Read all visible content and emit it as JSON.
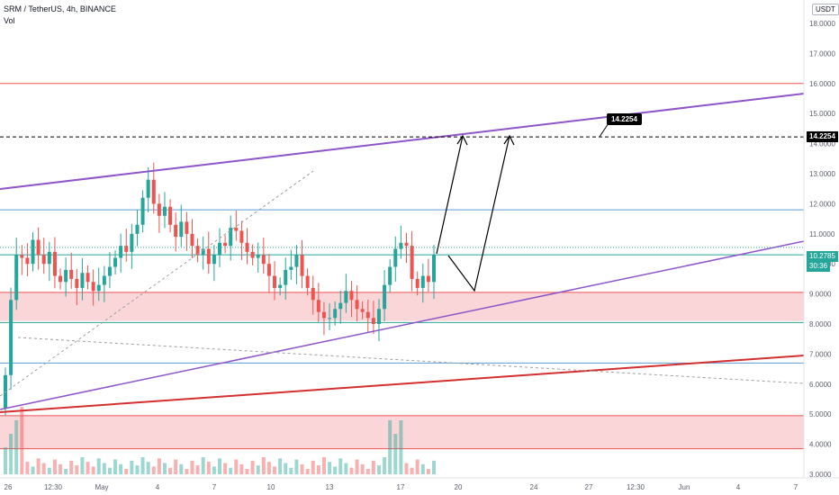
{
  "header": {
    "title": "SRM / TetherUS, 4h, BINANCE",
    "vol_label": "Vol",
    "currency": "USDT"
  },
  "chart_data": {
    "type": "candlestick",
    "y_axis": {
      "ylim": [
        3.0,
        18.6
      ],
      "ticks": [
        "18.0000",
        "17.0000",
        "16.0000",
        "15.0000",
        "14.0000",
        "13.0000",
        "12.0000",
        "11.0000",
        "10.0000",
        "9.0000",
        "8.0000",
        "7.0000",
        "6.0000",
        "5.0000",
        "4.0000",
        "3.0000"
      ]
    },
    "x_axis": {
      "ticks": [
        "26",
        "12:30",
        "May",
        "4",
        "7",
        "10",
        "13",
        "17",
        "20",
        "24",
        "27",
        "12:30",
        "Jun",
        "4",
        "7"
      ]
    },
    "current_price": "10.2785",
    "countdown": "30:36",
    "target_price": "14.2254",
    "annotation": "14.2254",
    "horizontal_levels": [
      {
        "value": 16.0,
        "color": "#ef5350"
      },
      {
        "value": 11.8,
        "color": "#5b9bd5"
      },
      {
        "value": 10.3,
        "color": "#26a69a"
      },
      {
        "value": 9.05,
        "color": "#ef5350"
      },
      {
        "value": 8.05,
        "color": "#26a69a"
      },
      {
        "value": 6.7,
        "color": "#5b9bd5"
      },
      {
        "value": 4.95,
        "color": "#ef5350"
      },
      {
        "value": 3.85,
        "color": "#ef5350"
      }
    ],
    "zones": [
      {
        "from": 8.1,
        "to": 9.05,
        "color": "#f8c8cc"
      },
      {
        "from": 3.85,
        "to": 4.95,
        "color": "#f8c8cc"
      }
    ],
    "candles_close_path": [
      6.3,
      8.8,
      10.3,
      10.2,
      10.0,
      10.8,
      10.3,
      10.0,
      10.4,
      9.6,
      9.4,
      9.8,
      9.5,
      9.2,
      9.7,
      9.4,
      9.1,
      9.3,
      9.6,
      9.9,
      10.2,
      10.6,
      10.4,
      11.0,
      11.3,
      12.2,
      12.8,
      12.0,
      11.6,
      11.9,
      11.3,
      10.9,
      11.4,
      11.0,
      10.6,
      10.3,
      10.5,
      10.0,
      10.3,
      10.7,
      10.6,
      11.2,
      11.1,
      10.7,
      10.4,
      10.2,
      10.3,
      10.0,
      9.6,
      9.2,
      9.3,
      9.8,
      9.9,
      10.3,
      9.6,
      9.2,
      8.8,
      8.4,
      8.2,
      8.2,
      8.5,
      8.7,
      9.1,
      8.8,
      8.5,
      8.4,
      8.2,
      8.0,
      8.5,
      9.3,
      9.9,
      10.5,
      10.7,
      10.6,
      9.5,
      9.2,
      9.6,
      9.4,
      10.3
    ],
    "colors": {
      "up": "#26a69a",
      "down": "#ef5350",
      "channel": "#8e55c8",
      "support": "#d32f2f"
    }
  }
}
